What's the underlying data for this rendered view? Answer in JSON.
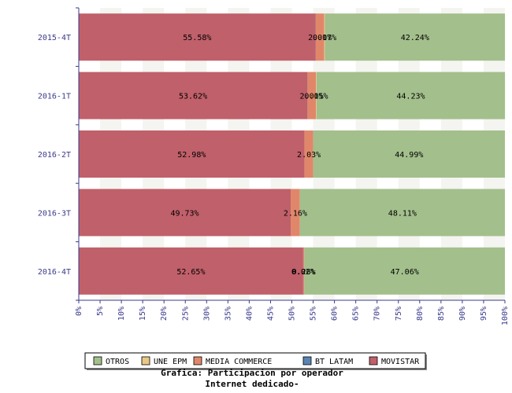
{
  "chart_data": {
    "type": "bar",
    "orientation": "horizontal",
    "stacked": "percent",
    "title": "Grafica: Participacion por operador",
    "subtitle": "Internet dedicado-",
    "categories": [
      "2015-4T",
      "2016-1T",
      "2016-2T",
      "2016-3T",
      "2016-4T"
    ],
    "series": [
      {
        "name": "MOVISTAR",
        "color": "#c0606a",
        "values": [
          55.58,
          53.62,
          52.98,
          49.73,
          52.65
        ],
        "labels": [
          "55.58%",
          "53.62%",
          "52.98%",
          "49.73%",
          "52.65%"
        ]
      },
      {
        "name": "BT LATAM",
        "color": "#5b84b4",
        "values": [
          0.02,
          0.02,
          0.0,
          0.0,
          0.02
        ],
        "labels": [
          "",
          "",
          "",
          "",
          "0.02%"
        ]
      },
      {
        "name": "MEDIA COMMERCE",
        "color": "#e0876a",
        "values": [
          2.0,
          2.0,
          2.03,
          2.16,
          0.26
        ],
        "labels": [
          "2.00%",
          "2.00%",
          "2.03%",
          "2.16%",
          "0.26%"
        ]
      },
      {
        "name": "UNE EPM",
        "color": "#e8c886",
        "values": [
          0.17,
          0.15,
          0.0,
          0.0,
          0.01
        ],
        "labels": [
          "0.17%",
          "0.15%",
          "",
          "",
          ""
        ]
      },
      {
        "name": "OTROS",
        "color": "#a3bf8c",
        "values": [
          42.24,
          44.23,
          44.99,
          48.11,
          47.06
        ],
        "labels": [
          "42.24%",
          "44.23%",
          "44.99%",
          "48.11%",
          "47.06%"
        ]
      }
    ],
    "xlim": [
      0,
      100
    ],
    "xticks": [
      "0%",
      "5%",
      "10%",
      "15%",
      "20%",
      "25%",
      "30%",
      "35%",
      "40%",
      "45%",
      "50%",
      "55%",
      "60%",
      "65%",
      "70%",
      "75%",
      "80%",
      "85%",
      "90%",
      "95%",
      "100%"
    ],
    "legend": {
      "position": "bottom",
      "order": [
        "OTROS",
        "UNE EPM",
        "MEDIA COMMERCE",
        "BT LATAM",
        "MOVISTAR"
      ]
    }
  }
}
